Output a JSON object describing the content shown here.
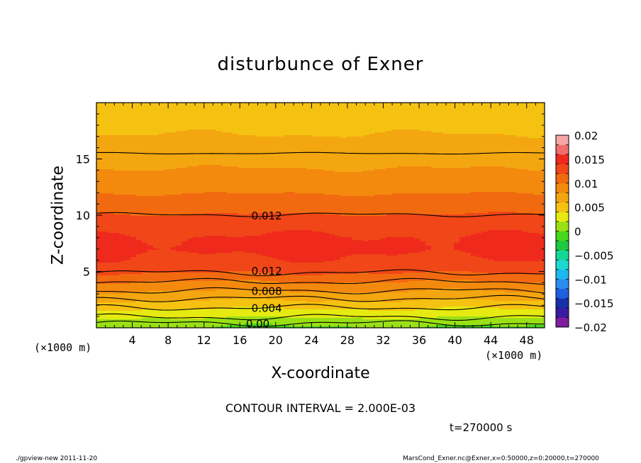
{
  "title": "disturbunce of Exner",
  "footer_left": "./gpview-new   2011-11-20",
  "footer_right": "MarsCond_Exner.nc@Exner,x=0:50000,z=0:20000,t=270000",
  "time_label": "t=270000 s",
  "contour_interval_label": "CONTOUR INTERVAL = 2.000E-03",
  "x_unit": "(×1000 m)",
  "y_unit": "(×1000 m)",
  "chart_data": {
    "type": "heatmap",
    "title": "disturbunce of Exner",
    "xlabel": "X-coordinate",
    "ylabel": "Z-coordinate",
    "xlim": [
      0,
      50
    ],
    "ylim": [
      0,
      20
    ],
    "xticks": [
      4,
      8,
      12,
      16,
      20,
      24,
      28,
      32,
      36,
      40,
      44,
      48
    ],
    "yticks": [
      5,
      10,
      15
    ],
    "colorbar": {
      "ticks": [
        0.02,
        0.015,
        0.01,
        0.005,
        0,
        -0.005,
        -0.01,
        -0.015,
        -0.02
      ],
      "tick_labels": [
        "0.02",
        "0.015",
        "0.01",
        "0.005",
        "0",
        "−0.005",
        "−0.01",
        "−0.015",
        "−0.02"
      ],
      "range": [
        -0.02,
        0.02
      ],
      "colors": [
        "#7e1ea0",
        "#3a1a9e",
        "#1630a8",
        "#1f5fe0",
        "#2a8cf0",
        "#1fb8ee",
        "#1cd8d0",
        "#14d898",
        "#1ec840",
        "#46d81a",
        "#9ae014",
        "#e6ea10",
        "#f5c212",
        "#f4a610",
        "#f38a0e",
        "#f26a10",
        "#f04618",
        "#ef2a1c",
        "#f06c6c",
        "#f7a6a6"
      ]
    },
    "profile_z": [
      0,
      0.5,
      1,
      1.5,
      2,
      2.5,
      3,
      3.5,
      4,
      4.5,
      5,
      6,
      7,
      8,
      9,
      10,
      11,
      12,
      13,
      14,
      15,
      16,
      17,
      18,
      19,
      20
    ],
    "profile_values": [
      -0.0002,
      0.0008,
      0.0024,
      0.0036,
      0.0048,
      0.0062,
      0.0074,
      0.0086,
      0.0098,
      0.011,
      0.0124,
      0.0138,
      0.0144,
      0.0142,
      0.0132,
      0.0121,
      0.011,
      0.0099,
      0.0089,
      0.0081,
      0.0074,
      0.0067,
      0.0061,
      0.0056,
      0.0052,
      0.0048
    ],
    "contour_labels": [
      {
        "text": "0.012",
        "x": 19,
        "z": 10
      },
      {
        "text": "0.012",
        "x": 19,
        "z": 5.1
      },
      {
        "text": "0.008",
        "x": 19,
        "z": 3.3
      },
      {
        "text": "0.004",
        "x": 19,
        "z": 1.8
      },
      {
        "text": "0.00",
        "x": 18,
        "z": 0.4
      }
    ],
    "contour_lines_z": [
      0.4,
      0.95,
      1.8,
      2.6,
      3.3,
      4.1,
      4.9,
      10.05,
      15.5
    ]
  }
}
